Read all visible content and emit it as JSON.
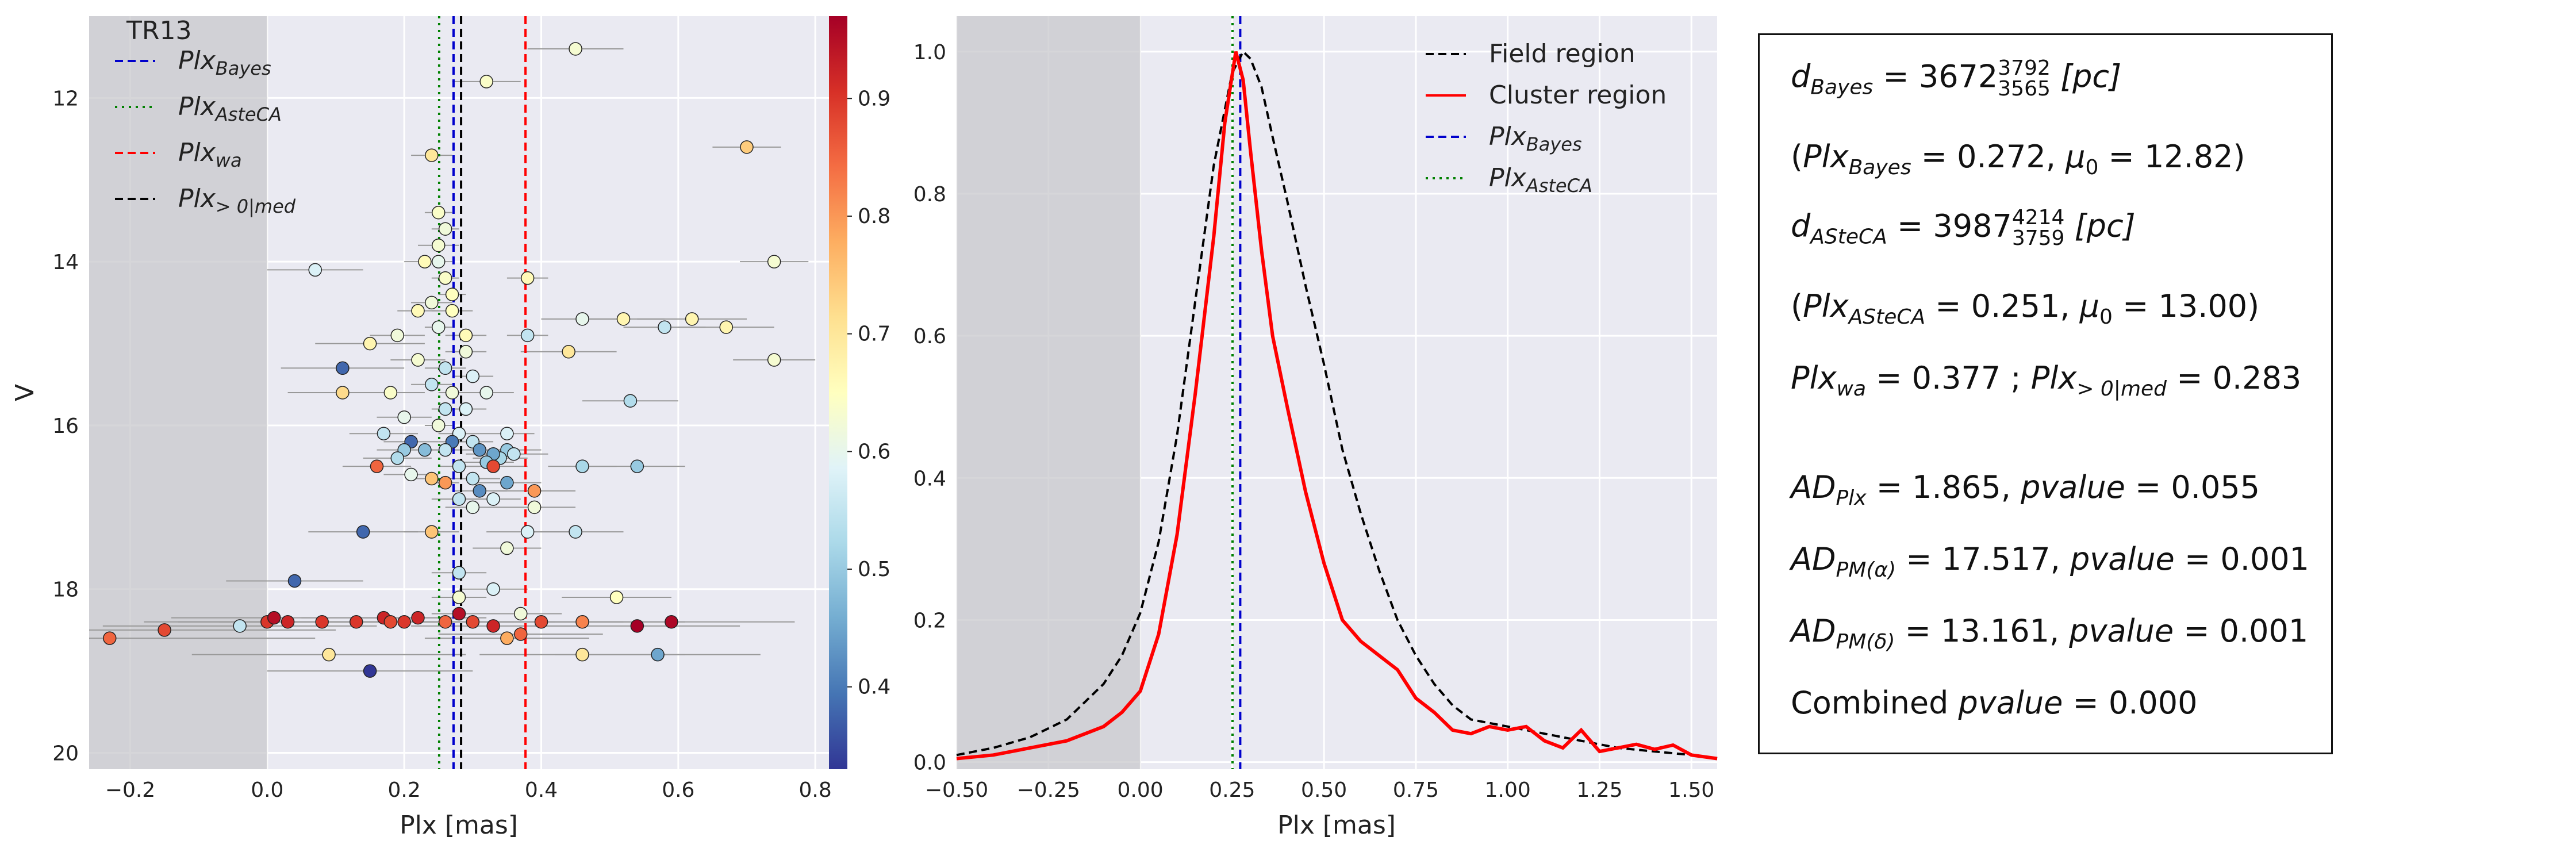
{
  "colors": {
    "axes_bg": "#eaeaf2",
    "grid": "#ffffff",
    "shade": "#c8c8cc",
    "bayes": "#0000cc",
    "asteca": "#008000",
    "wa": "#ff0000",
    "med": "#000000",
    "cluster_curve": "#ff0000",
    "field_curve": "#000000",
    "colormap": [
      "#313695",
      "#4575b4",
      "#74add1",
      "#abd9e9",
      "#e0f3f8",
      "#ffffbf",
      "#fee090",
      "#fdae61",
      "#f46d43",
      "#d73027",
      "#a50026"
    ]
  },
  "chart_data": [
    {
      "type": "scatter",
      "title": "TR13",
      "xlabel": "Plx [mas]",
      "ylabel": "V",
      "xlim": [
        -0.26,
        0.82
      ],
      "ylim": [
        20.2,
        11.0
      ],
      "y_inverted": true,
      "grid": true,
      "x_ticks": [
        "−0.2",
        "0.0",
        "0.2",
        "0.4",
        "0.6",
        "0.8"
      ],
      "y_ticks": [
        "12",
        "14",
        "16",
        "18",
        "20"
      ],
      "shaded_region": [
        -0.26,
        0.0
      ],
      "vlines": [
        {
          "name": "Plx_Bayes",
          "x": 0.272,
          "color": "bayes",
          "style": "dashed"
        },
        {
          "name": "Plx_AsteCA",
          "x": 0.251,
          "color": "asteca",
          "style": "dotted"
        },
        {
          "name": "Plx_wa",
          "x": 0.377,
          "color": "wa",
          "style": "dashed"
        },
        {
          "name": "Plx_>0|med",
          "x": 0.283,
          "color": "med",
          "style": "dashed"
        }
      ],
      "legend": {
        "placement": "top-left",
        "entries": [
          {
            "base": "Plx",
            "sub": "Bayes",
            "color": "bayes",
            "style": "dashed"
          },
          {
            "base": "Plx",
            "sub": "AsteCA",
            "color": "asteca",
            "style": "dotted"
          },
          {
            "base": "Plx",
            "sub": "wa",
            "color": "wa",
            "style": "dashed"
          },
          {
            "base": "Plx",
            "sub": "> 0|med",
            "color": "med",
            "style": "dashed"
          }
        ]
      },
      "colorbar": {
        "min": 0.33,
        "max": 0.97,
        "ticks": [
          "0.4",
          "0.5",
          "0.6",
          "0.7",
          "0.8",
          "0.9"
        ]
      },
      "points": [
        [
          0.45,
          11.4,
          0.07,
          0.63
        ],
        [
          0.32,
          11.8,
          0.05,
          0.64
        ],
        [
          0.24,
          12.7,
          0.03,
          0.7
        ],
        [
          0.7,
          12.6,
          0.05,
          0.74
        ],
        [
          0.25,
          13.4,
          0.02,
          0.64
        ],
        [
          0.26,
          13.6,
          0.02,
          0.62
        ],
        [
          0.25,
          13.8,
          0.03,
          0.63
        ],
        [
          0.25,
          14.0,
          0.02,
          0.6
        ],
        [
          0.07,
          14.1,
          0.07,
          0.58
        ],
        [
          0.74,
          14.0,
          0.05,
          0.63
        ],
        [
          0.23,
          14.0,
          0.03,
          0.66
        ],
        [
          0.26,
          14.2,
          0.02,
          0.64
        ],
        [
          0.27,
          14.4,
          0.02,
          0.65
        ],
        [
          0.24,
          14.5,
          0.03,
          0.62
        ],
        [
          0.27,
          14.6,
          0.03,
          0.65
        ],
        [
          0.22,
          14.6,
          0.03,
          0.66
        ],
        [
          0.25,
          14.8,
          0.02,
          0.6
        ],
        [
          0.19,
          14.9,
          0.04,
          0.62
        ],
        [
          0.29,
          14.9,
          0.03,
          0.66
        ],
        [
          0.38,
          14.2,
          0.03,
          0.66
        ],
        [
          0.38,
          14.9,
          0.03,
          0.55
        ],
        [
          0.46,
          14.7,
          0.06,
          0.6
        ],
        [
          0.52,
          14.7,
          0.06,
          0.67
        ],
        [
          0.58,
          14.8,
          0.06,
          0.55
        ],
        [
          0.62,
          14.7,
          0.08,
          0.67
        ],
        [
          0.67,
          14.8,
          0.07,
          0.67
        ],
        [
          0.74,
          15.2,
          0.06,
          0.63
        ],
        [
          0.44,
          15.1,
          0.07,
          0.7
        ],
        [
          0.15,
          15.0,
          0.08,
          0.67
        ],
        [
          0.11,
          15.3,
          0.09,
          0.38
        ],
        [
          0.22,
          15.2,
          0.04,
          0.63
        ],
        [
          0.26,
          15.3,
          0.03,
          0.55
        ],
        [
          0.29,
          15.1,
          0.03,
          0.62
        ],
        [
          0.3,
          15.4,
          0.03,
          0.58
        ],
        [
          0.24,
          15.5,
          0.03,
          0.55
        ],
        [
          0.11,
          15.6,
          0.08,
          0.72
        ],
        [
          0.18,
          15.6,
          0.05,
          0.64
        ],
        [
          0.27,
          15.6,
          0.02,
          0.62
        ],
        [
          0.32,
          15.6,
          0.04,
          0.6
        ],
        [
          0.53,
          15.7,
          0.07,
          0.53
        ],
        [
          0.26,
          15.8,
          0.02,
          0.55
        ],
        [
          0.29,
          15.8,
          0.03,
          0.58
        ],
        [
          0.2,
          15.9,
          0.04,
          0.6
        ],
        [
          0.25,
          16.0,
          0.02,
          0.62
        ],
        [
          0.28,
          16.1,
          0.03,
          0.58
        ],
        [
          0.35,
          16.1,
          0.04,
          0.58
        ],
        [
          0.17,
          16.1,
          0.05,
          0.55
        ],
        [
          0.21,
          16.2,
          0.04,
          0.38
        ],
        [
          0.27,
          16.2,
          0.02,
          0.4
        ],
        [
          0.3,
          16.2,
          0.03,
          0.55
        ],
        [
          0.2,
          16.3,
          0.04,
          0.5
        ],
        [
          0.23,
          16.3,
          0.04,
          0.48
        ],
        [
          0.26,
          16.3,
          0.02,
          0.55
        ],
        [
          0.31,
          16.3,
          0.04,
          0.43
        ],
        [
          0.35,
          16.3,
          0.05,
          0.5
        ],
        [
          0.34,
          16.4,
          0.04,
          0.52
        ],
        [
          0.33,
          16.35,
          0.04,
          0.45
        ],
        [
          0.36,
          16.35,
          0.05,
          0.55
        ],
        [
          0.32,
          16.45,
          0.04,
          0.5
        ],
        [
          0.19,
          16.4,
          0.05,
          0.53
        ],
        [
          0.16,
          16.5,
          0.05,
          0.85
        ],
        [
          0.28,
          16.5,
          0.03,
          0.55
        ],
        [
          0.33,
          16.5,
          0.05,
          0.88
        ],
        [
          0.46,
          16.5,
          0.05,
          0.52
        ],
        [
          0.54,
          16.5,
          0.07,
          0.5
        ],
        [
          0.21,
          16.6,
          0.04,
          0.6
        ],
        [
          0.24,
          16.65,
          0.03,
          0.75
        ],
        [
          0.26,
          16.7,
          0.02,
          0.8
        ],
        [
          0.3,
          16.65,
          0.04,
          0.55
        ],
        [
          0.35,
          16.7,
          0.05,
          0.45
        ],
        [
          0.31,
          16.8,
          0.04,
          0.42
        ],
        [
          0.39,
          16.8,
          0.06,
          0.8
        ],
        [
          0.28,
          16.9,
          0.04,
          0.55
        ],
        [
          0.33,
          16.9,
          0.04,
          0.58
        ],
        [
          0.3,
          17.0,
          0.04,
          0.6
        ],
        [
          0.39,
          17.0,
          0.06,
          0.62
        ],
        [
          0.14,
          17.3,
          0.08,
          0.38
        ],
        [
          0.38,
          17.3,
          0.06,
          0.58
        ],
        [
          0.45,
          17.3,
          0.07,
          0.55
        ],
        [
          0.24,
          17.3,
          0.04,
          0.75
        ],
        [
          0.35,
          17.5,
          0.05,
          0.62
        ],
        [
          0.28,
          17.8,
          0.04,
          0.55
        ],
        [
          0.04,
          17.9,
          0.1,
          0.38
        ],
        [
          0.28,
          18.1,
          0.04,
          0.63
        ],
        [
          0.33,
          18.0,
          0.05,
          0.58
        ],
        [
          0.51,
          18.1,
          0.08,
          0.65
        ],
        [
          0.28,
          18.3,
          0.04,
          0.95
        ],
        [
          0.37,
          18.3,
          0.06,
          0.62
        ],
        [
          -0.23,
          18.6,
          0.3,
          0.85
        ],
        [
          -0.15,
          18.5,
          0.25,
          0.88
        ],
        [
          -0.04,
          18.45,
          0.2,
          0.55
        ],
        [
          0.0,
          18.4,
          0.18,
          0.9
        ],
        [
          0.01,
          18.35,
          0.15,
          0.95
        ],
        [
          0.03,
          18.4,
          0.16,
          0.92
        ],
        [
          0.08,
          18.4,
          0.15,
          0.9
        ],
        [
          0.13,
          18.4,
          0.12,
          0.9
        ],
        [
          0.17,
          18.35,
          0.12,
          0.92
        ],
        [
          0.18,
          18.4,
          0.1,
          0.88
        ],
        [
          0.2,
          18.4,
          0.11,
          0.9
        ],
        [
          0.22,
          18.35,
          0.1,
          0.92
        ],
        [
          0.26,
          18.4,
          0.1,
          0.85
        ],
        [
          0.3,
          18.4,
          0.12,
          0.88
        ],
        [
          0.33,
          18.45,
          0.12,
          0.92
        ],
        [
          0.37,
          18.55,
          0.12,
          0.85
        ],
        [
          0.4,
          18.4,
          0.12,
          0.88
        ],
        [
          0.46,
          18.4,
          0.15,
          0.82
        ],
        [
          0.54,
          18.45,
          0.15,
          0.97
        ],
        [
          0.59,
          18.4,
          0.18,
          0.96
        ],
        [
          0.09,
          18.8,
          0.2,
          0.7
        ],
        [
          0.35,
          18.6,
          0.12,
          0.78
        ],
        [
          0.46,
          18.8,
          0.15,
          0.7
        ],
        [
          0.57,
          18.8,
          0.15,
          0.45
        ],
        [
          0.15,
          19.0,
          0.15,
          0.33
        ]
      ]
    },
    {
      "type": "line",
      "xlabel": "Plx [mas]",
      "xlim": [
        -0.5,
        1.57
      ],
      "ylim": [
        -0.01,
        1.05
      ],
      "grid": true,
      "x_ticks": [
        "−0.50",
        "−0.25",
        "0.00",
        "0.25",
        "0.50",
        "0.75",
        "1.00",
        "1.25",
        "1.50"
      ],
      "y_ticks": [
        "0.0",
        "0.2",
        "0.4",
        "0.6",
        "0.8",
        "1.0"
      ],
      "shaded_region": [
        -0.5,
        0.0
      ],
      "vlines": [
        {
          "name": "Plx_Bayes",
          "x": 0.272,
          "color": "bayes",
          "style": "dashed"
        },
        {
          "name": "Plx_AsteCA",
          "x": 0.251,
          "color": "asteca",
          "style": "dotted"
        }
      ],
      "legend": {
        "placement": "top-right",
        "entries": [
          {
            "label": "Field region",
            "color": "field_curve",
            "style": "dashed"
          },
          {
            "label": "Cluster region",
            "color": "cluster_curve",
            "style": "solid"
          },
          {
            "base": "Plx",
            "sub": "Bayes",
            "color": "bayes",
            "style": "dashed"
          },
          {
            "base": "Plx",
            "sub": "AsteCA",
            "color": "asteca",
            "style": "dotted"
          }
        ]
      },
      "series": [
        {
          "name": "Field region",
          "style": "dashed",
          "color": "field_curve",
          "x": [
            -0.5,
            -0.4,
            -0.3,
            -0.2,
            -0.1,
            -0.05,
            0.0,
            0.05,
            0.1,
            0.15,
            0.2,
            0.25,
            0.28,
            0.3,
            0.33,
            0.36,
            0.4,
            0.45,
            0.5,
            0.55,
            0.6,
            0.65,
            0.7,
            0.75,
            0.8,
            0.85,
            0.9,
            0.95,
            1.0,
            1.05,
            1.1,
            1.15,
            1.2,
            1.3,
            1.4,
            1.5,
            1.57
          ],
          "y": [
            0.01,
            0.02,
            0.035,
            0.06,
            0.11,
            0.15,
            0.21,
            0.31,
            0.46,
            0.65,
            0.84,
            0.97,
            1.0,
            0.99,
            0.95,
            0.88,
            0.79,
            0.67,
            0.56,
            0.44,
            0.35,
            0.27,
            0.2,
            0.15,
            0.11,
            0.08,
            0.06,
            0.055,
            0.05,
            0.045,
            0.04,
            0.035,
            0.03,
            0.02,
            0.015,
            0.01,
            0.005
          ]
        },
        {
          "name": "Cluster region",
          "style": "solid",
          "color": "cluster_curve",
          "x": [
            -0.5,
            -0.4,
            -0.3,
            -0.2,
            -0.1,
            -0.05,
            0.0,
            0.05,
            0.1,
            0.15,
            0.2,
            0.23,
            0.26,
            0.28,
            0.3,
            0.33,
            0.36,
            0.4,
            0.45,
            0.5,
            0.55,
            0.6,
            0.65,
            0.7,
            0.75,
            0.8,
            0.85,
            0.9,
            0.95,
            1.0,
            1.05,
            1.1,
            1.15,
            1.2,
            1.25,
            1.3,
            1.35,
            1.4,
            1.45,
            1.5,
            1.57
          ],
          "y": [
            0.005,
            0.01,
            0.02,
            0.03,
            0.05,
            0.07,
            0.1,
            0.18,
            0.32,
            0.52,
            0.74,
            0.9,
            1.0,
            0.96,
            0.86,
            0.72,
            0.6,
            0.5,
            0.38,
            0.28,
            0.2,
            0.17,
            0.15,
            0.13,
            0.09,
            0.07,
            0.045,
            0.04,
            0.05,
            0.045,
            0.05,
            0.03,
            0.02,
            0.045,
            0.015,
            0.02,
            0.025,
            0.018,
            0.024,
            0.01,
            0.005
          ]
        }
      ]
    }
  ],
  "stats": {
    "d_bayes": {
      "base": "d",
      "sub": "Bayes",
      "eq": "= 3672",
      "up": "3792",
      "low": "3565",
      "unit": "[pc]"
    },
    "plx_bayes_line": {
      "open": "(",
      "base": "Plx",
      "sub": "Bayes",
      "eq": "= 0.272,",
      "mu": "μ",
      "mu_sub": "0",
      "mu_val": "= 12.82)"
    },
    "d_asteca": {
      "base": "d",
      "sub": "ASteCA",
      "eq": "= 3987",
      "up": "4214",
      "low": "3759",
      "unit": "[pc]"
    },
    "plx_asteca_line": {
      "open": "(",
      "base": "Plx",
      "sub": "ASteCA",
      "eq": "= 0.251,",
      "mu": "μ",
      "mu_sub": "0",
      "mu_val": "= 13.00)"
    },
    "plx_wa_line": {
      "base": "Plx",
      "sub": "wa",
      "eq": "= 0.377 ;",
      "base2": "Plx",
      "sub2": "> 0|med",
      "eq2": "= 0.283"
    },
    "ad_plx": {
      "base": "AD",
      "sub": "Plx",
      "eq": "= 1.865,",
      "pv": "pvalue",
      "pv_val": "= 0.055"
    },
    "ad_pma": {
      "base": "AD",
      "sub": "PM(α)",
      "eq": "= 17.517,",
      "pv": "pvalue",
      "pv_val": "= 0.001"
    },
    "ad_pmd": {
      "base": "AD",
      "sub": "PM(δ)",
      "eq": "= 13.161,",
      "pv": "pvalue",
      "pv_val": "= 0.001"
    },
    "combined": {
      "label": "Combined",
      "pv": "pvalue",
      "pv_val": "= 0.000"
    }
  }
}
